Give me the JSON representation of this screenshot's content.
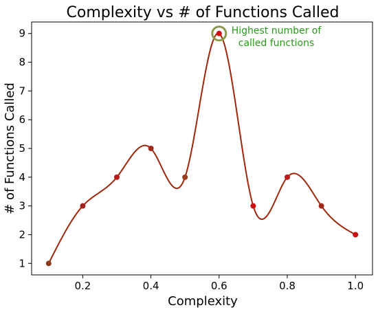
{
  "chart_data": {
    "type": "line",
    "title": "Complexity vs # of Functions Called",
    "xlabel": "Complexity",
    "ylabel": "# of Functions Called",
    "xlim": [
      0.05,
      1.05
    ],
    "ylim": [
      0.6,
      9.4
    ],
    "xticks": [
      "0.2",
      "0.4",
      "0.6",
      "0.8",
      "1.0"
    ],
    "yticks": [
      "1",
      "2",
      "3",
      "4",
      "5",
      "6",
      "7",
      "8",
      "9"
    ],
    "grid": false,
    "legend": "none",
    "series": [
      {
        "x": [
          0.1,
          0.2,
          0.3,
          0.4,
          0.5,
          0.6,
          0.7,
          0.8,
          0.9,
          1.0
        ],
        "values": [
          1,
          3,
          4,
          5,
          4,
          9,
          3,
          4,
          3,
          2
        ],
        "line_color": "#a0260a",
        "marker_colors": [
          "#8b3a1a",
          "#a0221a",
          "#b81a1a",
          "#a02a1a",
          "#9a3a1a",
          "#d01010",
          "#d01010",
          "#c01818",
          "#a02a1a",
          "#d01010"
        ],
        "smooth": true
      }
    ],
    "annotation": {
      "text_line1": "Highest number of",
      "text_line2": "called functions",
      "color": "#2a9a1a",
      "circle_color": "#8a9a4a",
      "target": {
        "x": 0.6,
        "y": 9
      }
    }
  }
}
